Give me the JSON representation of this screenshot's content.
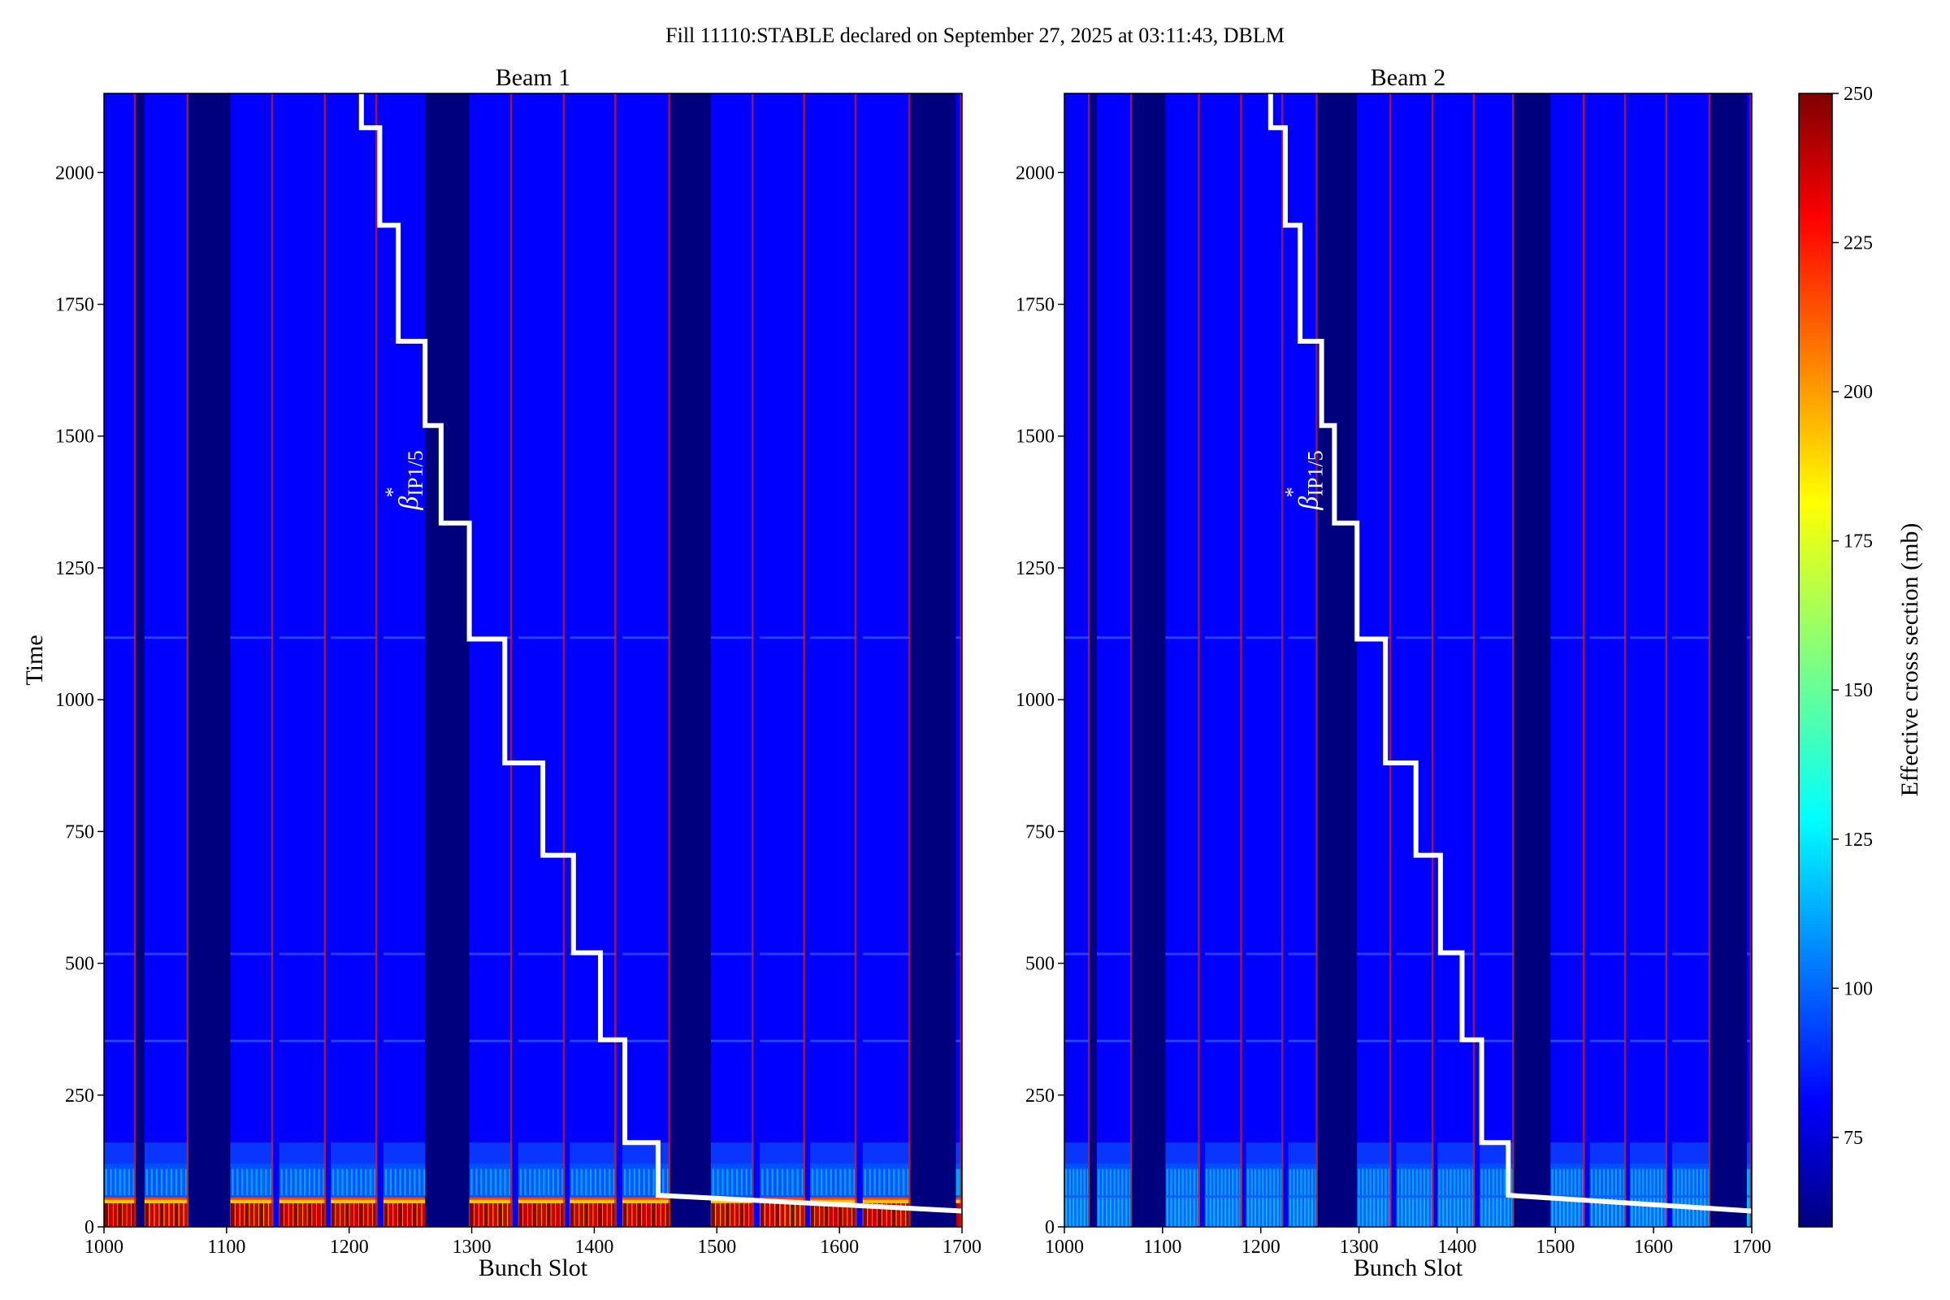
{
  "figure": {
    "title": "Fill 11110:STABLE declared on September 27, 2025 at 03:11:43, DBLM"
  },
  "chart_data": [
    {
      "type": "heatmap",
      "title": "Beam 1",
      "xlabel": "Bunch Slot",
      "ylabel": "Time",
      "xlim": [
        1000,
        1700
      ],
      "ylim": [
        0,
        2150
      ],
      "xticks": [
        "1000",
        "1100",
        "1200",
        "1300",
        "1400",
        "1500",
        "1600",
        "1700"
      ],
      "yticks": [
        "0",
        "250",
        "500",
        "750",
        "1000",
        "1250",
        "1500",
        "1750",
        "2000"
      ],
      "overlay_label_base": "β",
      "overlay_label_sup": "*",
      "overlay_label_sub": "IP1/5",
      "overlay_line": {
        "name": "β*IP1/5",
        "color": "#ffffff",
        "points": [
          [
            1700,
            30
          ],
          [
            1452,
            60
          ],
          [
            1452,
            160
          ],
          [
            1425,
            160
          ],
          [
            1425,
            355
          ],
          [
            1405,
            355
          ],
          [
            1405,
            520
          ],
          [
            1383,
            520
          ],
          [
            1383,
            705
          ],
          [
            1358,
            705
          ],
          [
            1358,
            880
          ],
          [
            1327,
            880
          ],
          [
            1327,
            1115
          ],
          [
            1298,
            1115
          ],
          [
            1298,
            1335
          ],
          [
            1275,
            1335
          ],
          [
            1275,
            1520
          ],
          [
            1262,
            1520
          ],
          [
            1262,
            1680
          ],
          [
            1240,
            1680
          ],
          [
            1240,
            1900
          ],
          [
            1225,
            1900
          ],
          [
            1225,
            2085
          ],
          [
            1210,
            2085
          ],
          [
            1210,
            2150
          ]
        ]
      },
      "trains": [
        [
          1000,
          1026
        ],
        [
          1033,
          1069
        ],
        [
          1103,
          1138
        ],
        [
          1143,
          1181
        ],
        [
          1185,
          1223
        ],
        [
          1228,
          1267
        ],
        [
          1298,
          1333
        ],
        [
          1338,
          1376
        ],
        [
          1380,
          1418
        ],
        [
          1423,
          1462
        ],
        [
          1495,
          1530
        ],
        [
          1535,
          1572
        ],
        [
          1576,
          1614
        ],
        [
          1619,
          1658
        ],
        [
          1695,
          1700
        ]
      ],
      "gaps": [
        [
          1026,
          1033
        ],
        [
          1069,
          1103
        ],
        [
          1262,
          1298
        ],
        [
          1462,
          1495
        ],
        [
          1658,
          1695
        ]
      ],
      "bottom_hot": true
    },
    {
      "type": "heatmap",
      "title": "Beam 2",
      "xlabel": "Bunch Slot",
      "ylabel": "",
      "xlim": [
        1000,
        1700
      ],
      "ylim": [
        0,
        2150
      ],
      "xticks": [
        "1000",
        "1100",
        "1200",
        "1300",
        "1400",
        "1500",
        "1600",
        "1700"
      ],
      "yticks": [
        "0",
        "250",
        "500",
        "750",
        "1000",
        "1250",
        "1500",
        "1750",
        "2000"
      ],
      "overlay_label_base": "β",
      "overlay_label_sup": "*",
      "overlay_label_sub": "IP1/5",
      "overlay_line": {
        "name": "β*IP1/5",
        "color": "#ffffff",
        "points": [
          [
            1700,
            30
          ],
          [
            1452,
            60
          ],
          [
            1452,
            160
          ],
          [
            1425,
            160
          ],
          [
            1425,
            355
          ],
          [
            1405,
            355
          ],
          [
            1405,
            520
          ],
          [
            1383,
            520
          ],
          [
            1383,
            705
          ],
          [
            1358,
            705
          ],
          [
            1358,
            880
          ],
          [
            1327,
            880
          ],
          [
            1327,
            1115
          ],
          [
            1298,
            1115
          ],
          [
            1298,
            1335
          ],
          [
            1275,
            1335
          ],
          [
            1275,
            1520
          ],
          [
            1262,
            1520
          ],
          [
            1262,
            1680
          ],
          [
            1240,
            1680
          ],
          [
            1240,
            1900
          ],
          [
            1225,
            1900
          ],
          [
            1225,
            2085
          ],
          [
            1210,
            2085
          ],
          [
            1210,
            2150
          ]
        ]
      },
      "trains": [
        [
          1000,
          1026
        ],
        [
          1033,
          1069
        ],
        [
          1103,
          1138
        ],
        [
          1143,
          1181
        ],
        [
          1185,
          1223
        ],
        [
          1228,
          1258
        ],
        [
          1298,
          1333
        ],
        [
          1338,
          1376
        ],
        [
          1380,
          1418
        ],
        [
          1423,
          1458
        ],
        [
          1495,
          1530
        ],
        [
          1535,
          1572
        ],
        [
          1576,
          1614
        ],
        [
          1619,
          1658
        ],
        [
          1695,
          1700
        ]
      ],
      "gaps": [
        [
          1026,
          1033
        ],
        [
          1069,
          1103
        ],
        [
          1258,
          1298
        ],
        [
          1458,
          1495
        ],
        [
          1658,
          1695
        ]
      ],
      "bottom_hot": false
    }
  ],
  "colorbar": {
    "label": "Effective cross section (mb)",
    "range": [
      60,
      250
    ],
    "ticks": [
      "75",
      "100",
      "125",
      "150",
      "175",
      "200",
      "225",
      "250"
    ],
    "colormap": "jet"
  },
  "colors": {
    "background_band": "#0000ff",
    "gap": "#00007f",
    "line": "#ffffff"
  }
}
